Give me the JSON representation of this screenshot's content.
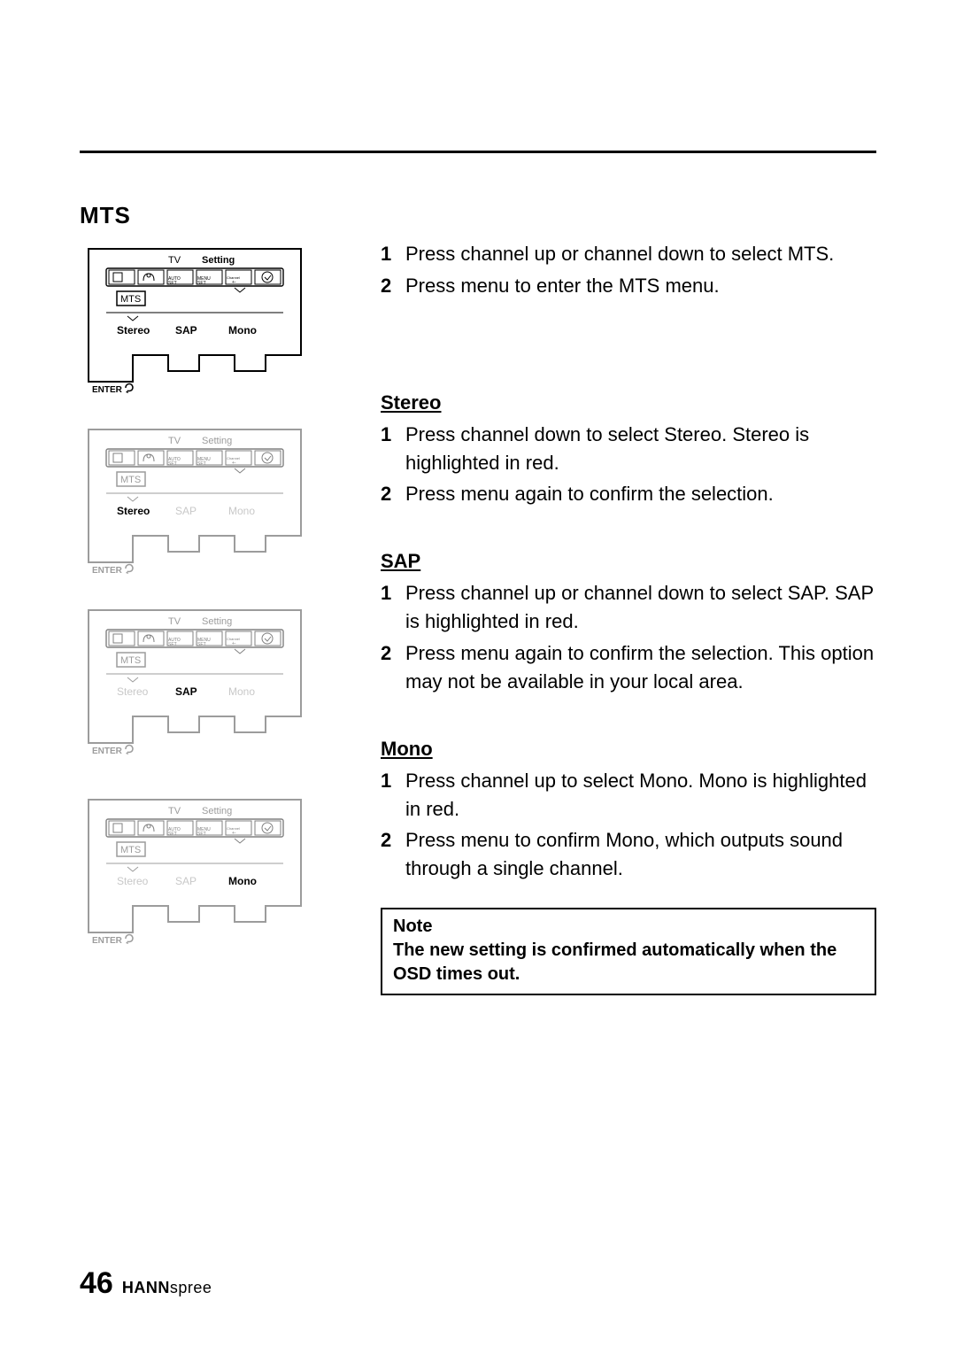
{
  "page_number": "46",
  "brand_bold": "HANN",
  "brand_light": "spree",
  "title": "MTS",
  "intro_steps": [
    "Press channel up or channel down to select MTS.",
    "Press menu to enter the MTS menu."
  ],
  "stereo": {
    "heading": "Stereo",
    "steps": [
      "Press channel down to select Stereo. Stereo is highlighted in red.",
      "Press menu again to confirm the selection."
    ]
  },
  "sap": {
    "heading": "SAP",
    "steps": [
      "Press channel up or channel down to select SAP. SAP is highlighted in red.",
      "Press menu again to confirm the selection. This option may not be available in your local area."
    ]
  },
  "mono": {
    "heading": "Mono",
    "steps": [
      "Press channel up to select Mono. Mono is highlighted in red.",
      "Press menu to confirm Mono, which outputs sound through a single channel."
    ]
  },
  "note": {
    "title": "Note",
    "body": "The new setting is confirmed automatically when the OSD times out."
  },
  "panels": [
    {
      "tv": "TV",
      "setting": "Setting",
      "mts": "MTS",
      "stereo": "Stereo",
      "sap": "SAP",
      "mono": "Mono",
      "enter": "ENTER",
      "active_dark": true,
      "highlight": "none"
    },
    {
      "tv": "TV",
      "setting": "Setting",
      "mts": "MTS",
      "stereo": "Stereo",
      "sap": "SAP",
      "mono": "Mono",
      "enter": "ENTER",
      "active_dark": false,
      "highlight": "stereo"
    },
    {
      "tv": "TV",
      "setting": "Setting",
      "mts": "MTS",
      "stereo": "Stereo",
      "sap": "SAP",
      "mono": "Mono",
      "enter": "ENTER",
      "active_dark": false,
      "highlight": "sap"
    },
    {
      "tv": "TV",
      "setting": "Setting",
      "mts": "MTS",
      "stereo": "Stereo",
      "sap": "SAP",
      "mono": "Mono",
      "enter": "ENTER",
      "active_dark": false,
      "highlight": "mono"
    }
  ],
  "colors": {
    "black": "#000000",
    "gray": "#9c9c9c",
    "light": "#c8c8c8",
    "white": "#ffffff"
  }
}
